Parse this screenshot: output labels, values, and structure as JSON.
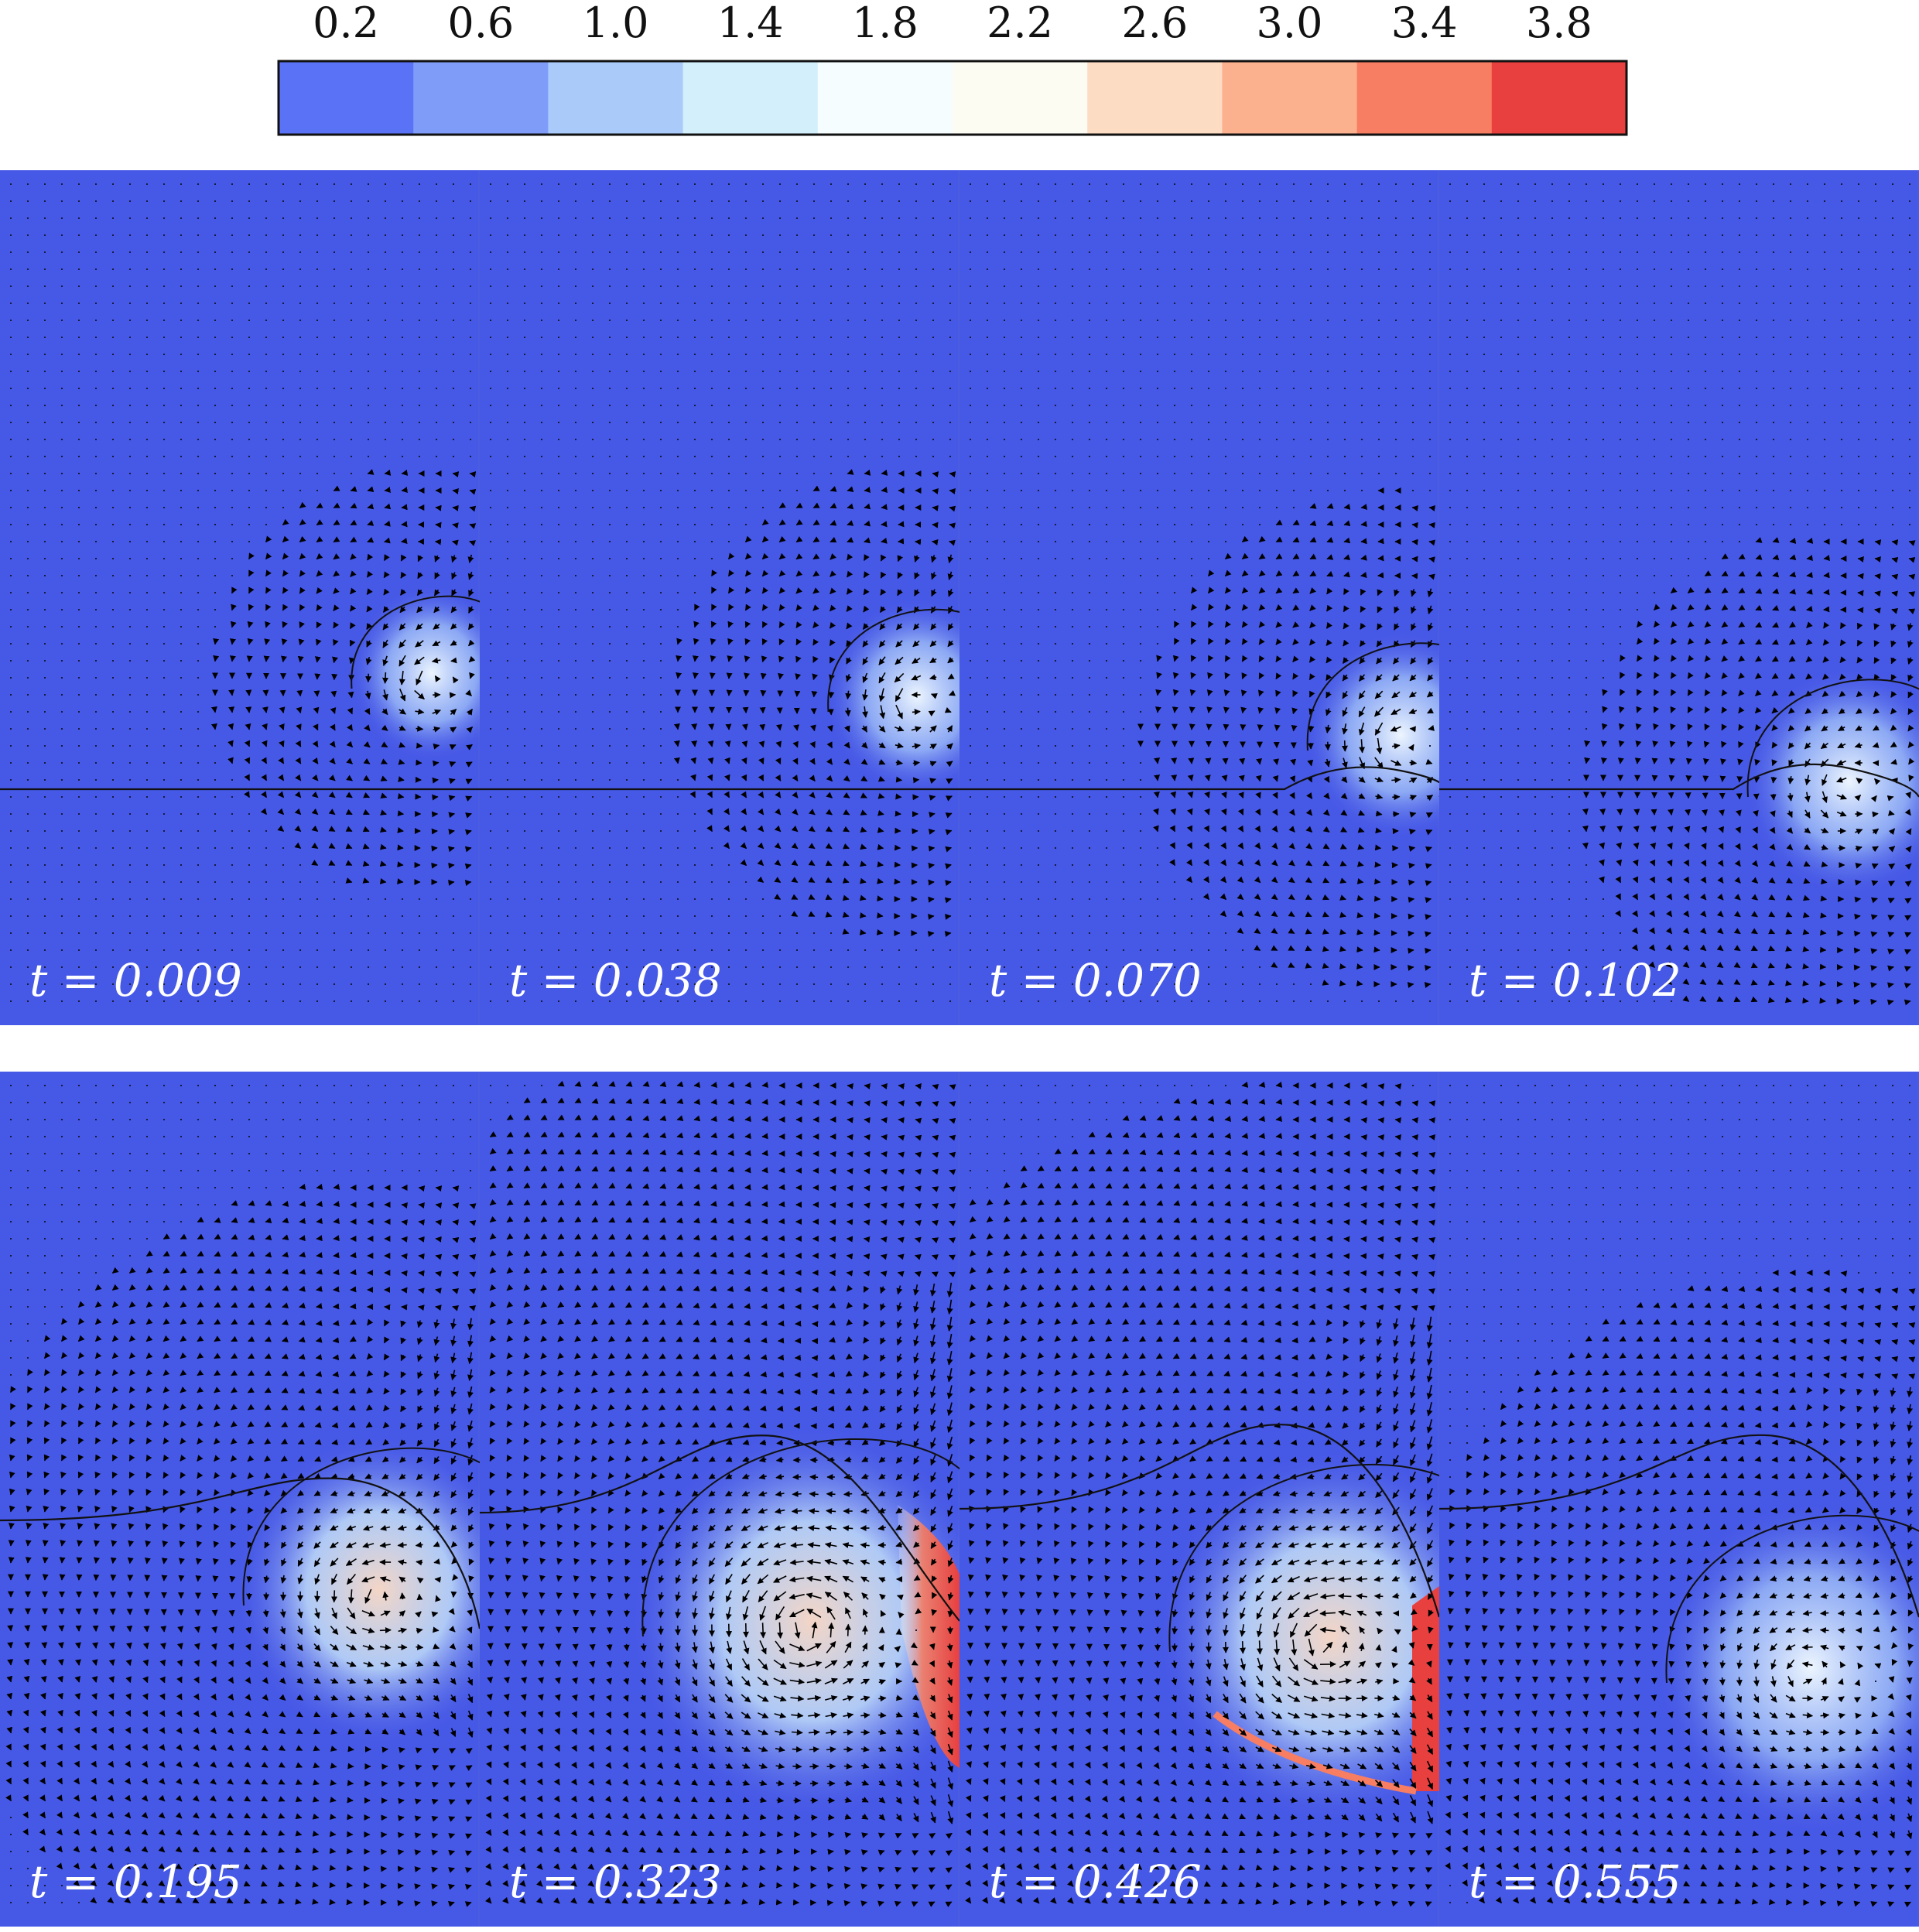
{
  "colorbar": {
    "tick_labels": [
      "0.2",
      "0.6",
      "1.0",
      "1.4",
      "1.8",
      "2.2",
      "2.6",
      "3.0",
      "3.4",
      "3.8"
    ],
    "colors": [
      "#5a72f5",
      "#7f9df8",
      "#aacbfa",
      "#d2effb",
      "#f5fdff",
      "#fdfcf3",
      "#fddcc4",
      "#fbb08e",
      "#f77e62",
      "#e83f3f"
    ]
  },
  "background_color": "#4658e6",
  "rows": [
    {
      "frames": [
        {
          "label": "t = 0.009",
          "stage": 1
        },
        {
          "label": "t = 0.038",
          "stage": 2
        },
        {
          "label": "t = 0.070",
          "stage": 3
        },
        {
          "label": "t = 0.102",
          "stage": 4
        }
      ]
    },
    {
      "frames": [
        {
          "label": "t = 0.195",
          "stage": 5
        },
        {
          "label": "t = 0.323",
          "stage": 6
        },
        {
          "label": "t = 0.426",
          "stage": 7
        },
        {
          "label": "t = 0.555",
          "stage": 8
        }
      ]
    }
  ]
}
